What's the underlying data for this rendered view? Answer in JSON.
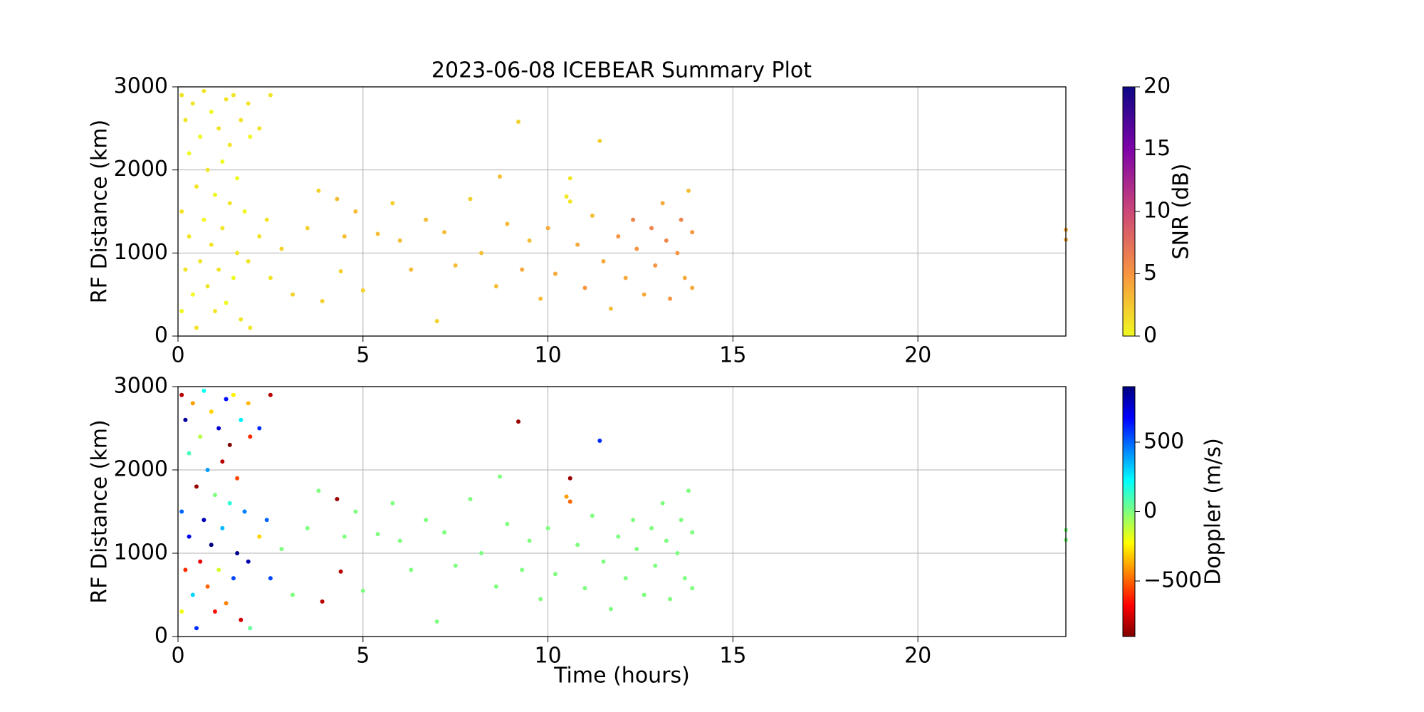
{
  "chart_data": [
    {
      "type": "scatter",
      "title": "2023-06-08 ICEBEAR Summary Plot",
      "ylabel": "RF Distance (km)",
      "xlim": [
        0,
        24
      ],
      "xticks": [
        0,
        5,
        10,
        15,
        20
      ],
      "ylim": [
        0,
        3000
      ],
      "yticks": [
        0,
        1000,
        2000,
        3000
      ],
      "grid": true,
      "x": [
        0.1,
        0.1,
        0.1,
        0.2,
        0.2,
        0.3,
        0.3,
        0.4,
        0.4,
        0.5,
        0.5,
        0.6,
        0.6,
        0.7,
        0.7,
        0.8,
        0.8,
        0.9,
        0.9,
        1.0,
        1.0,
        1.1,
        1.1,
        1.2,
        1.2,
        1.3,
        1.3,
        1.4,
        1.4,
        1.5,
        1.5,
        1.6,
        1.6,
        1.7,
        1.7,
        1.8,
        1.9,
        1.9,
        1.95,
        1.95,
        2.2,
        2.2,
        2.5,
        2.5,
        2.4,
        2.8,
        3.1,
        3.5,
        3.8,
        3.9,
        4.3,
        4.4,
        4.5,
        4.8,
        5.0,
        5.4,
        5.8,
        6.0,
        6.3,
        6.7,
        7.0,
        7.2,
        7.5,
        7.9,
        8.2,
        8.6,
        8.7,
        8.9,
        9.2,
        9.3,
        9.5,
        9.8,
        10.0,
        10.2,
        10.5,
        10.6,
        10.6,
        10.8,
        11.0,
        11.2,
        11.4,
        11.5,
        11.7,
        11.9,
        12.1,
        12.3,
        12.4,
        12.6,
        12.8,
        12.9,
        13.1,
        13.2,
        13.3,
        13.5,
        13.6,
        13.7,
        13.8,
        13.9,
        13.9,
        24,
        24
      ],
      "y": [
        2900,
        1500,
        300,
        2600,
        800,
        2200,
        1200,
        2800,
        500,
        1800,
        100,
        2400,
        900,
        2950,
        1400,
        600,
        2000,
        2700,
        1100,
        300,
        1700,
        2500,
        800,
        2100,
        1300,
        2850,
        400,
        1600,
        2300,
        700,
        2900,
        1000,
        1900,
        2600,
        200,
        1500,
        2800,
        900,
        2400,
        100,
        2500,
        1200,
        2900,
        700,
        1400,
        1050,
        500,
        1300,
        1750,
        420,
        1650,
        780,
        1200,
        1500,
        550,
        1230,
        1600,
        1150,
        800,
        1400,
        180,
        1250,
        850,
        1650,
        1000,
        600,
        1920,
        1350,
        2580,
        800,
        1150,
        450,
        1300,
        750,
        1680,
        1620,
        1900,
        1100,
        580,
        1450,
        2350,
        900,
        330,
        1200,
        700,
        1400,
        1050,
        500,
        1300,
        850,
        1600,
        1150,
        450,
        1000,
        1400,
        700,
        1750,
        1250,
        580,
        1280,
        1160
      ],
      "color_values": [
        1,
        1,
        0,
        1,
        1,
        0,
        1,
        1,
        0,
        1,
        1,
        0,
        1,
        1,
        0,
        1,
        1,
        0,
        1,
        1,
        0,
        1,
        1,
        0,
        1,
        1,
        0,
        1,
        1,
        0,
        1,
        1,
        0,
        1,
        1,
        0,
        1,
        1,
        0,
        1,
        1,
        1,
        1,
        1,
        1,
        2,
        2,
        2,
        2,
        2,
        3,
        2,
        3,
        3,
        2,
        3,
        2,
        3,
        3,
        3,
        2,
        3,
        3,
        2,
        3,
        3,
        3,
        3,
        2,
        4,
        3,
        3,
        4,
        4,
        1,
        1,
        1,
        4,
        5,
        3,
        2,
        4,
        3,
        5,
        4,
        6,
        5,
        4,
        6,
        5,
        4,
        6,
        5,
        5,
        6,
        4,
        3,
        5,
        4,
        4,
        4
      ],
      "colorbar": {
        "label": "SNR (dB)",
        "lim": [
          0,
          20
        ],
        "ticks": [
          0,
          5,
          10,
          15,
          20
        ],
        "colormap": "plasma_r"
      }
    },
    {
      "type": "scatter",
      "ylabel": "RF Distance (km)",
      "xlabel": "Time (hours)",
      "xlim": [
        0,
        24
      ],
      "xticks": [
        0,
        5,
        10,
        15,
        20
      ],
      "ylim": [
        0,
        3000
      ],
      "yticks": [
        0,
        1000,
        2000,
        3000
      ],
      "grid": true,
      "x": [
        0.1,
        0.1,
        0.1,
        0.2,
        0.2,
        0.3,
        0.3,
        0.4,
        0.4,
        0.5,
        0.5,
        0.6,
        0.6,
        0.7,
        0.7,
        0.8,
        0.8,
        0.9,
        0.9,
        1.0,
        1.0,
        1.1,
        1.1,
        1.2,
        1.2,
        1.3,
        1.3,
        1.4,
        1.4,
        1.5,
        1.5,
        1.6,
        1.6,
        1.7,
        1.7,
        1.8,
        1.9,
        1.9,
        1.95,
        1.95,
        2.2,
        2.2,
        2.5,
        2.5,
        2.4,
        2.8,
        3.1,
        3.5,
        3.8,
        3.9,
        4.3,
        4.4,
        4.5,
        4.8,
        5.0,
        5.4,
        5.8,
        6.0,
        6.3,
        6.7,
        7.0,
        7.2,
        7.5,
        7.9,
        8.2,
        8.6,
        8.7,
        8.9,
        9.2,
        9.3,
        9.5,
        9.8,
        10.0,
        10.2,
        10.5,
        10.6,
        10.6,
        10.8,
        11.0,
        11.2,
        11.4,
        11.5,
        11.7,
        11.9,
        12.1,
        12.3,
        12.4,
        12.6,
        12.8,
        12.9,
        13.1,
        13.2,
        13.3,
        13.5,
        13.6,
        13.7,
        13.8,
        13.9,
        13.9,
        24,
        24
      ],
      "y": [
        2900,
        1500,
        300,
        2600,
        800,
        2200,
        1200,
        2800,
        500,
        1800,
        100,
        2400,
        900,
        2950,
        1400,
        600,
        2000,
        2700,
        1100,
        300,
        1700,
        2500,
        800,
        2100,
        1300,
        2850,
        400,
        1600,
        2300,
        700,
        2900,
        1000,
        1900,
        2600,
        200,
        1500,
        2800,
        900,
        2400,
        100,
        2500,
        1200,
        2900,
        700,
        1400,
        1050,
        500,
        1300,
        1750,
        420,
        1650,
        780,
        1200,
        1500,
        550,
        1230,
        1600,
        1150,
        800,
        1400,
        180,
        1250,
        850,
        1650,
        1000,
        600,
        1920,
        1350,
        2580,
        800,
        1150,
        450,
        1300,
        750,
        1680,
        1620,
        1900,
        1100,
        580,
        1450,
        2350,
        900,
        330,
        1200,
        700,
        1400,
        1050,
        500,
        1300,
        850,
        1600,
        1150,
        450,
        1000,
        1400,
        700,
        1750,
        1250,
        580,
        1280,
        1160
      ],
      "color_values": [
        -800,
        500,
        -200,
        850,
        -600,
        100,
        700,
        -400,
        300,
        -850,
        600,
        -100,
        -700,
        200,
        800,
        -500,
        400,
        -300,
        900,
        -650,
        0,
        750,
        -150,
        -800,
        350,
        650,
        -450,
        150,
        -900,
        550,
        -250,
        880,
        -550,
        250,
        -750,
        450,
        -350,
        820,
        -600,
        50,
        600,
        -300,
        -800,
        550,
        500,
        0,
        0,
        0,
        0,
        -800,
        -850,
        -800,
        0,
        0,
        0,
        0,
        0,
        0,
        0,
        0,
        0,
        0,
        0,
        0,
        0,
        0,
        0,
        0,
        -850,
        0,
        0,
        0,
        0,
        0,
        -400,
        -500,
        -850,
        0,
        0,
        0,
        600,
        0,
        0,
        0,
        0,
        0,
        0,
        0,
        0,
        0,
        0,
        0,
        0,
        0,
        0,
        0,
        0,
        0,
        0,
        0,
        0
      ],
      "colorbar": {
        "label": "Doppler (m/s)",
        "lim": [
          -900,
          900
        ],
        "ticks": [
          {
            "value": -500,
            "label": "−500"
          },
          0,
          500
        ],
        "colormap": "jet_r"
      }
    }
  ]
}
